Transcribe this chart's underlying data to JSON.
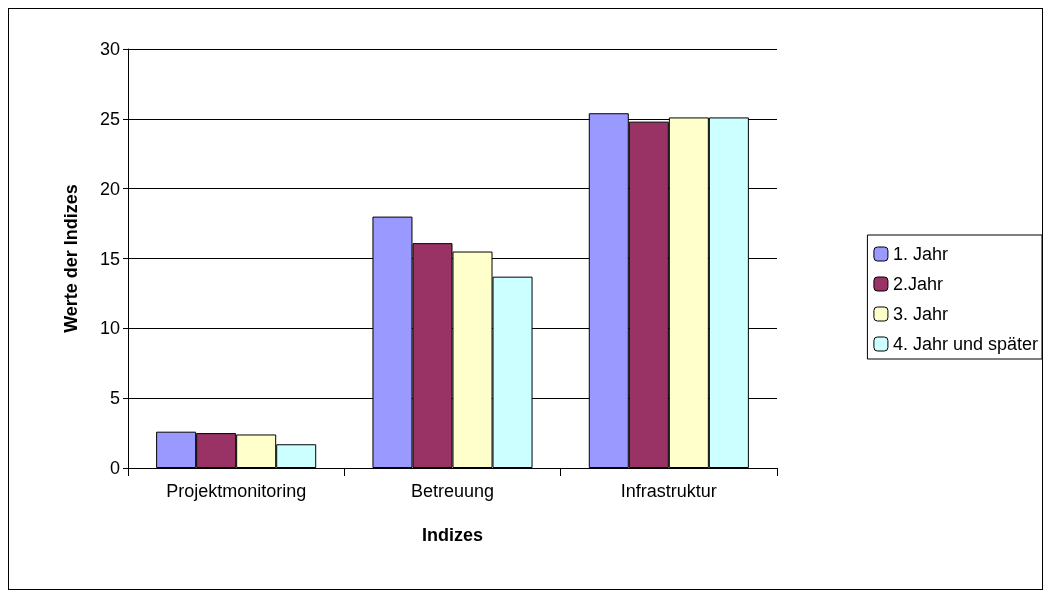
{
  "chart_data": {
    "type": "bar",
    "xlabel": "Indizes",
    "ylabel": "Werte der Indizes",
    "categories": [
      "Projektmonitoring",
      "Betreuung",
      "Infrastruktur"
    ],
    "series": [
      {
        "name": "1. Jahr",
        "color": "#9999ff",
        "values": [
          2.6,
          18.0,
          25.4
        ]
      },
      {
        "name": "2.Jahr",
        "color": "#993366",
        "values": [
          2.5,
          16.1,
          24.8
        ]
      },
      {
        "name": "3. Jahr",
        "color": "#ffffcc",
        "values": [
          2.4,
          15.5,
          25.1
        ]
      },
      {
        "name": "4. Jahr und später",
        "color": "#ccffff",
        "values": [
          1.7,
          13.7,
          25.1
        ]
      }
    ],
    "ylim": [
      0,
      30
    ],
    "yticks": [
      0,
      5,
      10,
      15,
      20,
      25,
      30
    ],
    "grid": "y",
    "legend": "right"
  }
}
